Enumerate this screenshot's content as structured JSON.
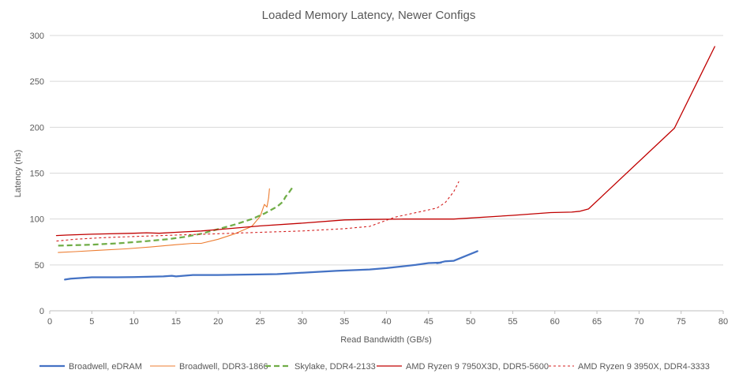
{
  "chart_data": {
    "type": "line",
    "title": "Loaded Memory Latency, Newer Configs",
    "xlabel": "Read Bandwidth (GB/s)",
    "ylabel": "Latency (ns)",
    "xlim": [
      0,
      80
    ],
    "ylim": [
      0,
      300
    ],
    "x_ticks": [
      0,
      5,
      10,
      15,
      20,
      25,
      30,
      35,
      40,
      45,
      50,
      55,
      60,
      65,
      70,
      75,
      80
    ],
    "y_ticks": [
      0,
      50,
      100,
      150,
      200,
      250,
      300
    ],
    "grid": "horizontal",
    "legend": "bottom",
    "series": [
      {
        "name": "Broadwell, eDRAM",
        "color": "#4472c4",
        "style": "solid-thick",
        "points": [
          [
            1.8,
            34
          ],
          [
            2.5,
            35
          ],
          [
            5,
            36.5
          ],
          [
            8,
            36.5
          ],
          [
            10,
            36.8
          ],
          [
            12,
            37.2
          ],
          [
            13.5,
            37.5
          ],
          [
            14.5,
            38.2
          ],
          [
            15,
            37.5
          ],
          [
            17,
            39
          ],
          [
            20,
            39
          ],
          [
            24,
            39.5
          ],
          [
            27,
            40
          ],
          [
            30,
            41.5
          ],
          [
            34,
            43.5
          ],
          [
            38,
            45
          ],
          [
            40,
            46.5
          ],
          [
            43.5,
            50
          ],
          [
            45,
            52
          ],
          [
            46.5,
            52.5
          ],
          [
            46,
            51.8
          ],
          [
            47,
            54
          ],
          [
            48,
            54.5
          ],
          [
            50.8,
            65
          ]
        ]
      },
      {
        "name": "Broadwell, DDR3-1866",
        "color": "#ed7d31",
        "style": "solid-thin",
        "points": [
          [
            1,
            63.5
          ],
          [
            3,
            64.5
          ],
          [
            6,
            66
          ],
          [
            9,
            67.5
          ],
          [
            12,
            69.5
          ],
          [
            15,
            72
          ],
          [
            17,
            73.5
          ],
          [
            18,
            73.5
          ],
          [
            20,
            78
          ],
          [
            22,
            84
          ],
          [
            24,
            92
          ],
          [
            25,
            103
          ],
          [
            25.5,
            116
          ],
          [
            25.8,
            113
          ],
          [
            26,
            123
          ],
          [
            26.1,
            133
          ]
        ]
      },
      {
        "name": "Skylake, DDR4-2133",
        "color": "#70ad47",
        "style": "dashed-thick",
        "points": [
          [
            1,
            71
          ],
          [
            3,
            71.5
          ],
          [
            5,
            72
          ],
          [
            8,
            73.5
          ],
          [
            11,
            75.5
          ],
          [
            14,
            78
          ],
          [
            16,
            80.5
          ],
          [
            18,
            84
          ],
          [
            20,
            89
          ],
          [
            22,
            94
          ],
          [
            24,
            100
          ],
          [
            25.5,
            106
          ],
          [
            26.5,
            111
          ],
          [
            27,
            113.5
          ],
          [
            27.7,
            119
          ],
          [
            28,
            124
          ],
          [
            28.5,
            130
          ],
          [
            28.8,
            134
          ]
        ]
      },
      {
        "name": "AMD Ryzen 9 7950X3D, DDR5-5600",
        "color": "#c00000",
        "style": "solid-medium",
        "points": [
          [
            0.8,
            82
          ],
          [
            2,
            82.5
          ],
          [
            5,
            83.5
          ],
          [
            10,
            84.5
          ],
          [
            11.5,
            85
          ],
          [
            13,
            84.5
          ],
          [
            15,
            85.5
          ],
          [
            18,
            87
          ],
          [
            20,
            88.5
          ],
          [
            25,
            92.5
          ],
          [
            30,
            95.5
          ],
          [
            35,
            99
          ],
          [
            38,
            99.5
          ],
          [
            42,
            100
          ],
          [
            48,
            100
          ],
          [
            55,
            104
          ],
          [
            59.5,
            107
          ],
          [
            62,
            107.5
          ],
          [
            63,
            108.5
          ],
          [
            64,
            111
          ],
          [
            74.2,
            199
          ],
          [
            79,
            288
          ]
        ]
      },
      {
        "name": "AMD Ryzen 9 3950X, DDR4-3333",
        "color": "#d42020",
        "style": "dashed-thin",
        "points": [
          [
            0.8,
            76
          ],
          [
            3,
            78
          ],
          [
            6,
            79.5
          ],
          [
            10,
            81
          ],
          [
            15,
            82.5
          ],
          [
            20,
            84
          ],
          [
            25,
            85.5
          ],
          [
            30,
            87
          ],
          [
            35,
            89.5
          ],
          [
            38,
            92
          ],
          [
            41,
            102
          ],
          [
            44,
            108
          ],
          [
            46,
            112
          ],
          [
            47,
            118
          ],
          [
            48,
            130
          ],
          [
            48.6,
            141
          ]
        ]
      }
    ]
  }
}
